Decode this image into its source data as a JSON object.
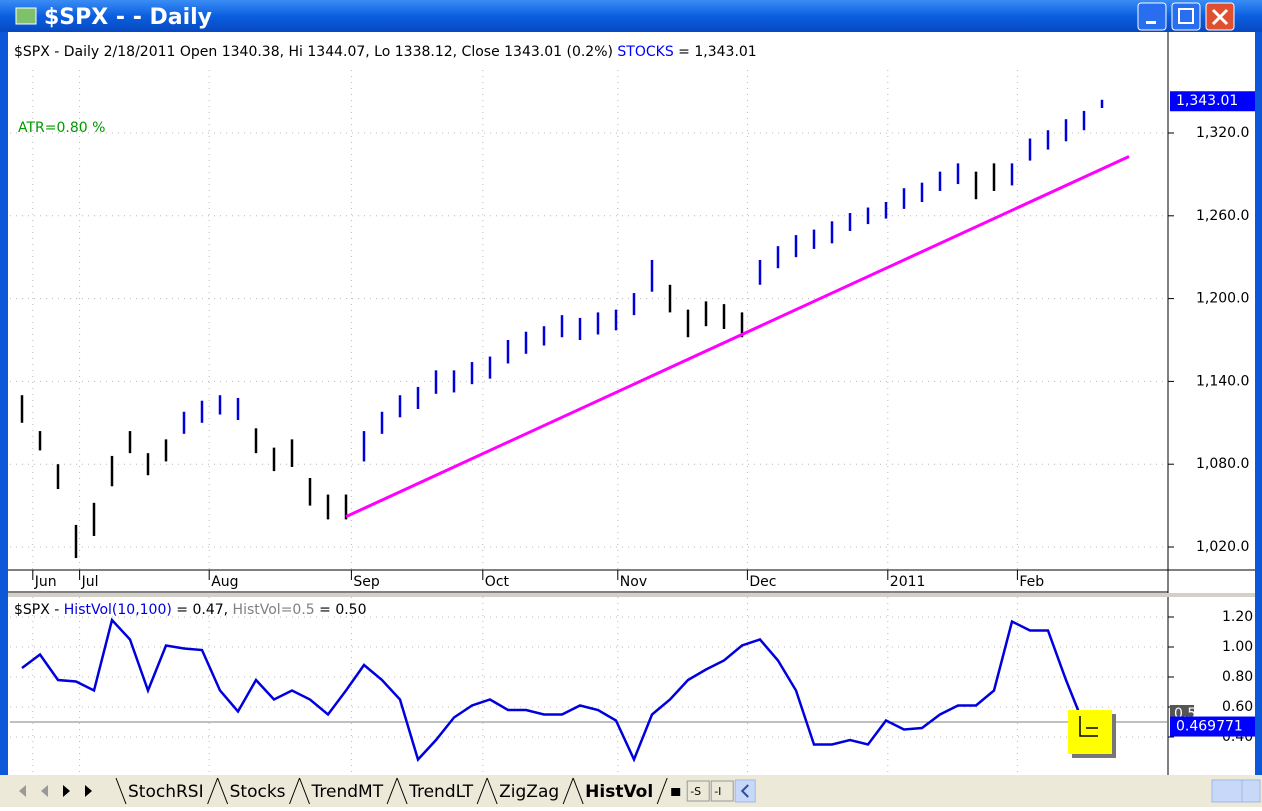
{
  "window": {
    "title": "$SPX -  - Daily"
  },
  "chart_data": [
    {
      "type": "ohlc",
      "header": {
        "main": "$SPX - Daily 2/18/2011 Open 1340.38, Hi 1344.07, Lo 1338.12, Close 1343.01 (0.2%) ",
        "series": "STOCKS",
        "tail": " = 1,343.01",
        "series_color": "#0000ff"
      },
      "annotation": {
        "text": "ATR=0.80 %",
        "color": "#009900"
      },
      "last_value": {
        "value": 1343.01,
        "label": "1,343.01",
        "color": "#0000ff"
      },
      "lows": [
        1110,
        1090,
        1062,
        1012,
        1028,
        1064,
        1088,
        1072,
        1082,
        1102,
        1110,
        1116,
        1112,
        1088,
        1075,
        1078,
        1050,
        1040,
        1040,
        1082,
        1102,
        1114,
        1120,
        1131,
        1132,
        1138,
        1142,
        1153,
        1160,
        1166,
        1172,
        1170,
        1174,
        1177,
        1188,
        1205,
        1190,
        1172,
        1180,
        1178,
        1172,
        1210,
        1222,
        1230,
        1236,
        1240,
        1249,
        1254,
        1258,
        1265,
        1270,
        1278,
        1283,
        1272,
        1278,
        1282,
        1300,
        1308,
        1314,
        1322,
        1338.12
      ],
      "highs": [
        1130,
        1104,
        1080,
        1036,
        1052,
        1086,
        1104,
        1088,
        1098,
        1118,
        1126,
        1130,
        1128,
        1106,
        1092,
        1098,
        1070,
        1058,
        1058,
        1104,
        1118,
        1130,
        1136,
        1148,
        1148,
        1154,
        1158,
        1170,
        1176,
        1180,
        1188,
        1186,
        1190,
        1192,
        1204,
        1228,
        1210,
        1192,
        1198,
        1196,
        1190,
        1228,
        1238,
        1246,
        1250,
        1256,
        1262,
        1266,
        1270,
        1280,
        1284,
        1292,
        1298,
        1292,
        1298,
        1298,
        1316,
        1322,
        1330,
        1336,
        1344.07
      ],
      "colors": [
        "#000",
        "#000",
        "#000",
        "#000",
        "#000",
        "#000",
        "#000",
        "#000",
        "#000",
        "#0000dd",
        "#0000dd",
        "#0000dd",
        "#0000dd",
        "#000",
        "#000",
        "#000",
        "#000",
        "#000",
        "#000",
        "#0000dd",
        "#0000dd",
        "#0000dd",
        "#0000dd",
        "#0000dd",
        "#0000dd",
        "#0000dd",
        "#0000dd",
        "#0000dd",
        "#0000dd",
        "#0000dd",
        "#0000dd",
        "#0000dd",
        "#0000dd",
        "#0000dd",
        "#0000dd",
        "#0000dd",
        "#000",
        "#000",
        "#000",
        "#000",
        "#000",
        "#0000dd",
        "#0000dd",
        "#0000dd",
        "#0000dd",
        "#0000dd",
        "#0000dd",
        "#0000dd",
        "#0000dd",
        "#0000dd",
        "#0000dd",
        "#0000dd",
        "#0000dd",
        "#000",
        "#000",
        "#0000dd",
        "#0000dd",
        "#0000dd",
        "#0000dd",
        "#0000dd",
        "#0000dd"
      ],
      "trendline": {
        "color": "#ff00ff",
        "x": [
          18,
          61.5
        ],
        "values": [
          1042,
          1303
        ]
      },
      "ylim": [
        990,
        1375
      ],
      "yticks": [
        {
          "value": 1020,
          "label": "1,020.0"
        },
        {
          "value": 1080,
          "label": "1,080.0"
        },
        {
          "value": 1140,
          "label": "1,140.0"
        },
        {
          "value": 1200,
          "label": "1,200.0"
        },
        {
          "value": 1260,
          "label": "1,260.0"
        },
        {
          "value": 1320,
          "label": "1,320.0"
        }
      ],
      "xticks": [
        {
          "value": 0.6,
          "label": "Jun"
        },
        {
          "value": 3.2,
          "label": "Jul"
        },
        {
          "value": 10.4,
          "label": "Aug"
        },
        {
          "value": 18.3,
          "label": "Sep"
        },
        {
          "value": 25.6,
          "label": "Oct"
        },
        {
          "value": 33.1,
          "label": "Nov"
        },
        {
          "value": 40.3,
          "label": "Dec"
        },
        {
          "value": 48.1,
          "label": "2011"
        },
        {
          "value": 55.3,
          "label": "Feb"
        }
      ],
      "grid": true
    },
    {
      "type": "line",
      "header": {
        "prefix": "$SPX - ",
        "series": "HistVol(10,100)",
        "mid": " = 0.47, ",
        "ref": "HistVol=0.5",
        "tail": " = 0.50"
      },
      "series": [
        {
          "name": "HistVol(10,100)",
          "color": "#0000dd",
          "values": [
            0.86,
            0.95,
            0.78,
            0.77,
            0.71,
            1.18,
            1.05,
            0.71,
            1.01,
            0.99,
            0.98,
            0.71,
            0.57,
            0.78,
            0.65,
            0.71,
            0.65,
            0.55,
            0.71,
            0.88,
            0.78,
            0.65,
            0.25,
            0.38,
            0.53,
            0.61,
            0.65,
            0.58,
            0.58,
            0.55,
            0.55,
            0.61,
            0.58,
            0.51,
            0.25,
            0.55,
            0.65,
            0.78,
            0.85,
            0.91,
            1.01,
            1.05,
            0.91,
            0.71,
            0.35,
            0.35,
            0.38,
            0.35,
            0.51,
            0.45,
            0.46,
            0.55,
            0.61,
            0.61,
            0.71,
            1.17,
            1.11,
            1.11,
            0.78,
            0.48,
            0.47
          ]
        }
      ],
      "reference": {
        "value": 0.5,
        "label": "0.5",
        "color": "#808080"
      },
      "last_value": {
        "value": 0.469771,
        "label": "0.469771",
        "color": "#0000ff"
      },
      "ylim": [
        0.34,
        1.3
      ],
      "yticks": [
        {
          "value": 0.4,
          "label": "0.40"
        },
        {
          "value": 0.6,
          "label": "0.60"
        },
        {
          "value": 0.8,
          "label": "0.80"
        },
        {
          "value": 1.0,
          "label": "1.00"
        },
        {
          "value": 1.2,
          "label": "1.20"
        }
      ],
      "grid": true
    }
  ],
  "tabs": [
    "StochRSI",
    "Stocks",
    "TrendMT",
    "TrendLT",
    "ZigZag",
    "HistVol"
  ],
  "tab_extras": [
    "-S",
    "-I"
  ]
}
